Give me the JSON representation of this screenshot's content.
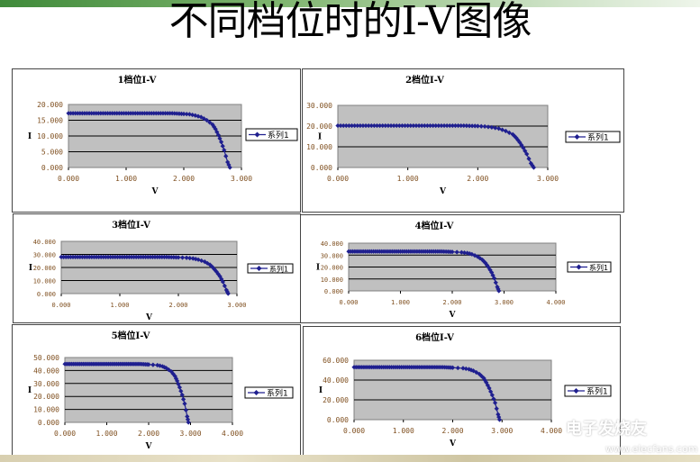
{
  "slide": {
    "title": "不同档位时的I-V图像",
    "colors": {
      "series": "#1f1f8f",
      "plot_bg": "#c0c0c0",
      "grid": "#000000",
      "tick_label": "#7f4f1f",
      "top_bar": "#3f8a3a"
    }
  },
  "watermark": {
    "logo_text": "电子发烧友",
    "url": "www.elecfans.com"
  },
  "chart_data": [
    {
      "type": "line",
      "title": "1档位I-V",
      "xlabel": "V",
      "ylabel": "I",
      "legend": "系列1",
      "legend_position": "right",
      "grid": true,
      "xlim": [
        0,
        3
      ],
      "ylim": [
        0,
        20
      ],
      "x_ticks": [
        "0.000",
        "1.000",
        "2.000",
        "3.000"
      ],
      "y_ticks": [
        "0.000",
        "5.000",
        "10.000",
        "15.000",
        "20.000"
      ],
      "series": [
        {
          "name": "系列1",
          "x": [
            0,
            0.2,
            0.4,
            0.6,
            0.8,
            1.0,
            1.2,
            1.4,
            1.6,
            1.8,
            2.0,
            2.1,
            2.2,
            2.3,
            2.4,
            2.5,
            2.55,
            2.6,
            2.65,
            2.7,
            2.76,
            2.8
          ],
          "y": [
            17.2,
            17.2,
            17.2,
            17.2,
            17.2,
            17.2,
            17.2,
            17.2,
            17.2,
            17.2,
            17.0,
            16.9,
            16.5,
            16.0,
            15.0,
            13.6,
            12.2,
            10.3,
            8.1,
            5.5,
            1.7,
            0
          ]
        }
      ]
    },
    {
      "type": "line",
      "title": "2档位I-V",
      "xlabel": "V",
      "ylabel": "I",
      "legend": "系列1",
      "legend_position": "right",
      "grid": true,
      "xlim": [
        0,
        3
      ],
      "ylim": [
        0,
        30
      ],
      "x_ticks": [
        "0.000",
        "1.000",
        "2.000",
        "3.000"
      ],
      "y_ticks": [
        "0.000",
        "10.000",
        "20.000",
        "30.000"
      ],
      "series": [
        {
          "name": "系列1",
          "x": [
            0,
            0.2,
            0.4,
            0.6,
            0.8,
            1.0,
            1.2,
            1.4,
            1.6,
            1.8,
            2.0,
            2.1,
            2.2,
            2.3,
            2.4,
            2.5,
            2.55,
            2.6,
            2.65,
            2.7,
            2.76,
            2.8
          ],
          "y": [
            20.2,
            20.2,
            20.2,
            20.2,
            20.2,
            20.2,
            20.2,
            20.2,
            20.2,
            20.2,
            20.0,
            19.8,
            19.4,
            18.8,
            17.6,
            16.0,
            14.3,
            12.1,
            9.5,
            6.5,
            2.0,
            0
          ]
        }
      ]
    },
    {
      "type": "line",
      "title": "3档位I-V",
      "xlabel": "V",
      "ylabel": "I",
      "legend": "系列1",
      "legend_position": "right",
      "grid": true,
      "xlim": [
        0,
        3
      ],
      "ylim": [
        0,
        40
      ],
      "x_ticks": [
        "0.000",
        "1.000",
        "2.000",
        "3.000"
      ],
      "y_ticks": [
        "0.000",
        "10.000",
        "20.000",
        "30.000",
        "40.000"
      ],
      "series": [
        {
          "name": "系列1",
          "x": [
            0,
            0.2,
            0.4,
            0.6,
            0.8,
            1.0,
            1.2,
            1.4,
            1.6,
            1.8,
            2.0,
            2.14,
            2.25,
            2.34,
            2.45,
            2.54,
            2.59,
            2.65,
            2.71,
            2.76,
            2.82,
            2.85
          ],
          "y": [
            28,
            28,
            28,
            28,
            28,
            28,
            28,
            28,
            28,
            28,
            27.7,
            27.4,
            26.9,
            26.0,
            24.4,
            22.1,
            19.9,
            16.8,
            13.2,
            9.0,
            2.8,
            0
          ]
        }
      ]
    },
    {
      "type": "line",
      "title": "4档位I-V",
      "xlabel": "V",
      "ylabel": "I",
      "legend": "系列1",
      "legend_position": "right",
      "grid": true,
      "xlim": [
        0,
        4
      ],
      "ylim": [
        0,
        40
      ],
      "x_ticks": [
        "0.000",
        "1.000",
        "2.000",
        "3.000",
        "4.000"
      ],
      "y_ticks": [
        "0.000",
        "10.000",
        "20.000",
        "30.000",
        "40.000"
      ],
      "series": [
        {
          "name": "系列1",
          "x": [
            0,
            0.2,
            0.4,
            0.6,
            0.8,
            1.0,
            1.2,
            1.4,
            1.6,
            1.8,
            2.0,
            2.18,
            2.29,
            2.38,
            2.49,
            2.58,
            2.64,
            2.7,
            2.76,
            2.81,
            2.87,
            2.9
          ],
          "y": [
            33,
            33,
            33,
            33,
            33,
            33,
            33,
            33,
            33,
            33,
            32.7,
            32.3,
            31.7,
            30.7,
            28.7,
            26.1,
            23.4,
            19.8,
            15.5,
            10.6,
            3.3,
            0
          ]
        }
      ]
    },
    {
      "type": "line",
      "title": "5档位I-V",
      "xlabel": "V",
      "ylabel": "I",
      "legend": "系列1",
      "legend_position": "right",
      "grid": true,
      "xlim": [
        0,
        4
      ],
      "ylim": [
        0,
        50
      ],
      "x_ticks": [
        "0.000",
        "1.000",
        "2.000",
        "3.000",
        "4.000"
      ],
      "y_ticks": [
        "0.000",
        "10.000",
        "20.000",
        "30.000",
        "40.000",
        "50.000"
      ],
      "series": [
        {
          "name": "系列1",
          "x": [
            0,
            0.2,
            0.4,
            0.6,
            0.8,
            1.0,
            1.2,
            1.4,
            1.6,
            1.8,
            2.0,
            2.21,
            2.33,
            2.42,
            2.54,
            2.63,
            2.68,
            2.74,
            2.8,
            2.86,
            2.92,
            2.95
          ],
          "y": [
            45,
            45,
            45,
            45,
            45,
            45,
            45,
            45,
            45,
            45,
            44.6,
            44.1,
            43.2,
            41.9,
            39.2,
            35.6,
            32.0,
            27.0,
            21.2,
            14.4,
            4.5,
            0
          ]
        }
      ]
    },
    {
      "type": "line",
      "title": "6档位I-V",
      "xlabel": "V",
      "ylabel": "I",
      "legend": "系列1",
      "legend_position": "right",
      "grid": true,
      "xlim": [
        0,
        4
      ],
      "ylim": [
        0,
        60
      ],
      "x_ticks": [
        "0.000",
        "1.000",
        "2.000",
        "3.000",
        "4.000"
      ],
      "y_ticks": [
        "0.000",
        "20.000",
        "40.000",
        "60.000"
      ],
      "series": [
        {
          "name": "系列1",
          "x": [
            0,
            0.2,
            0.4,
            0.6,
            0.8,
            1.0,
            1.2,
            1.4,
            1.6,
            1.8,
            2.0,
            2.21,
            2.33,
            2.42,
            2.54,
            2.63,
            2.68,
            2.74,
            2.8,
            2.86,
            2.92,
            2.95
          ],
          "y": [
            53,
            53,
            53,
            53,
            53,
            53,
            53,
            53,
            53,
            53,
            52.5,
            51.9,
            50.9,
            49.3,
            46.1,
            41.9,
            37.6,
            31.8,
            24.9,
            17.0,
            5.3,
            0
          ]
        }
      ]
    }
  ]
}
